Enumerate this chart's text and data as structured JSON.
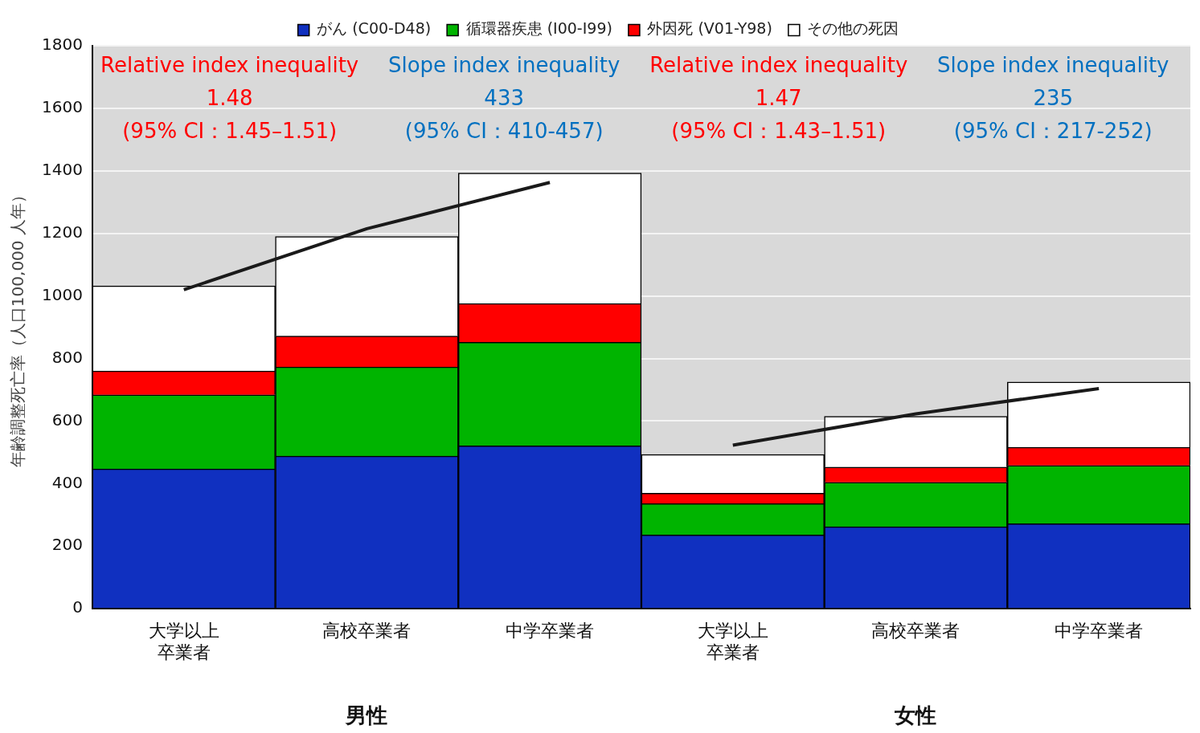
{
  "chart_data": {
    "type": "bar",
    "stacked": true,
    "ylabel": "年齢調整死亡率（人口100,000 人年）",
    "categories": [
      "大学以上卒業者",
      "高校卒業者",
      "中学卒業者",
      "大学以上卒業者",
      "高校卒業者",
      "中学卒業者"
    ],
    "series": [
      {
        "name": "がん (C00-D48)",
        "color": "#1030c0",
        "values": [
          447,
          488,
          521,
          236,
          262,
          272
        ]
      },
      {
        "name": "循環器疾患 (I00-I99)",
        "color": "#00b400",
        "values": [
          237,
          285,
          331,
          100,
          142,
          186
        ]
      },
      {
        "name": "外因死 (V01-Y98)",
        "color": "#ff0000",
        "values": [
          76,
          99,
          124,
          33,
          49,
          58
        ]
      },
      {
        "name": "その他の死因",
        "color": "#ffffff",
        "values": [
          272,
          318,
          417,
          124,
          162,
          209
        ]
      },
      {
        "type": "line",
        "color": "#1a1a1a",
        "values": [
          1020,
          1215,
          1363,
          null,
          null,
          null
        ]
      },
      {
        "type": "line",
        "color": "#1a1a1a",
        "values": [
          null,
          null,
          null,
          523,
          623,
          704
        ]
      }
    ],
    "ylim": [
      0,
      1800
    ],
    "yticks": [
      0,
      200,
      400,
      600,
      800,
      1000,
      1200,
      1400,
      1600,
      1800
    ],
    "grid": "y",
    "legend": "top",
    "marker": "none",
    "annotations": [
      "Relative index inequality\n1.48\n(95% CI：1.45–1.51)",
      "Slope index inequality\n433\n(95% CI：410-457)",
      "Relative index inequality\n1.47\n(95% CI：1.43–1.51)",
      "Slope index inequality\n235\n(95% CI：217-252)",
      "男性",
      "女性"
    ]
  }
}
